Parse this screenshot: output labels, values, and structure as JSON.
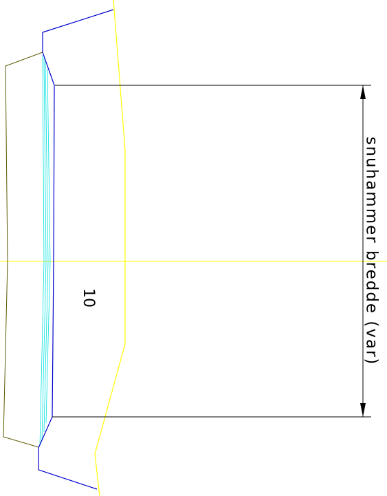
{
  "drawing": {
    "dimension_label": "snuhammer bredde (var)",
    "area_number": "10",
    "colors": {
      "background": "#ffffff",
      "outline": "#000000",
      "olive_outline": "#5a5a00",
      "road_edge": "#0000cc",
      "lane_lines": "#00e0e0",
      "centerline": "#ffff00",
      "dimension": "#000000"
    }
  }
}
